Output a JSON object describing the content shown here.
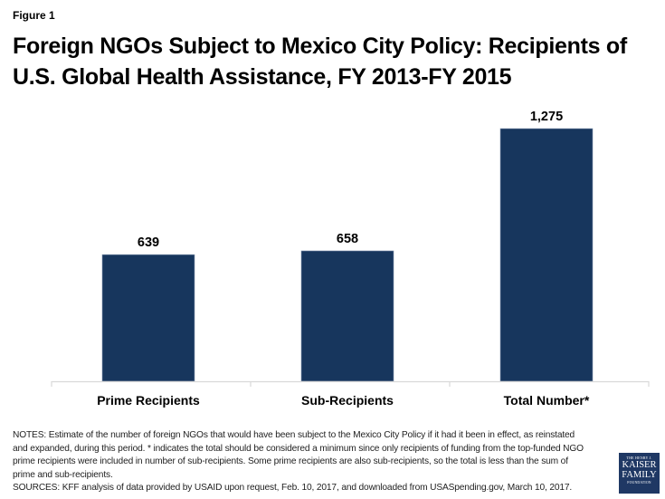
{
  "figure_label": "Figure 1",
  "title_line1": "Foreign NGOs Subject to Mexico City Policy: Recipients of",
  "title_line2": "U.S. Global Health Assistance, FY 2013-FY 2015",
  "chart_data": {
    "type": "bar",
    "title": "Foreign NGOs Subject to Mexico City Policy: Recipients of U.S. Global Health Assistance, FY 2013-FY 2015",
    "categories": [
      "Prime Recipients",
      "Sub-Recipients",
      "Total Number*"
    ],
    "values": [
      639,
      658,
      1275
    ],
    "data_labels": [
      "639",
      "658",
      "1,275"
    ],
    "xlabel": "",
    "ylabel": "",
    "ylim": [
      0,
      1275
    ],
    "grid": false,
    "legend": "none",
    "bar_color": "#17365d"
  },
  "notes": [
    "NOTES: Estimate of the number of foreign NGOs that would have been subject to the Mexico City Policy if it had it been in effect, as reinstated and expanded, during this period. * indicates the total should be considered a minimum since only recipients of funding from the top-funded NGO prime recipients were included in number of sub-recipients. Some prime recipients are also sub-recipients, so the total is less than the sum of prime and sub-recipients.",
    "SOURCES: KFF analysis of data provided by USAID upon request, Feb. 10, 2017,  and downloaded from USASpending.gov, March 10, 2017."
  ],
  "logo": {
    "line1": "THE HENRY J.",
    "line2": "KAISER",
    "line3": "FAMILY",
    "line4": "FOUNDATION"
  }
}
